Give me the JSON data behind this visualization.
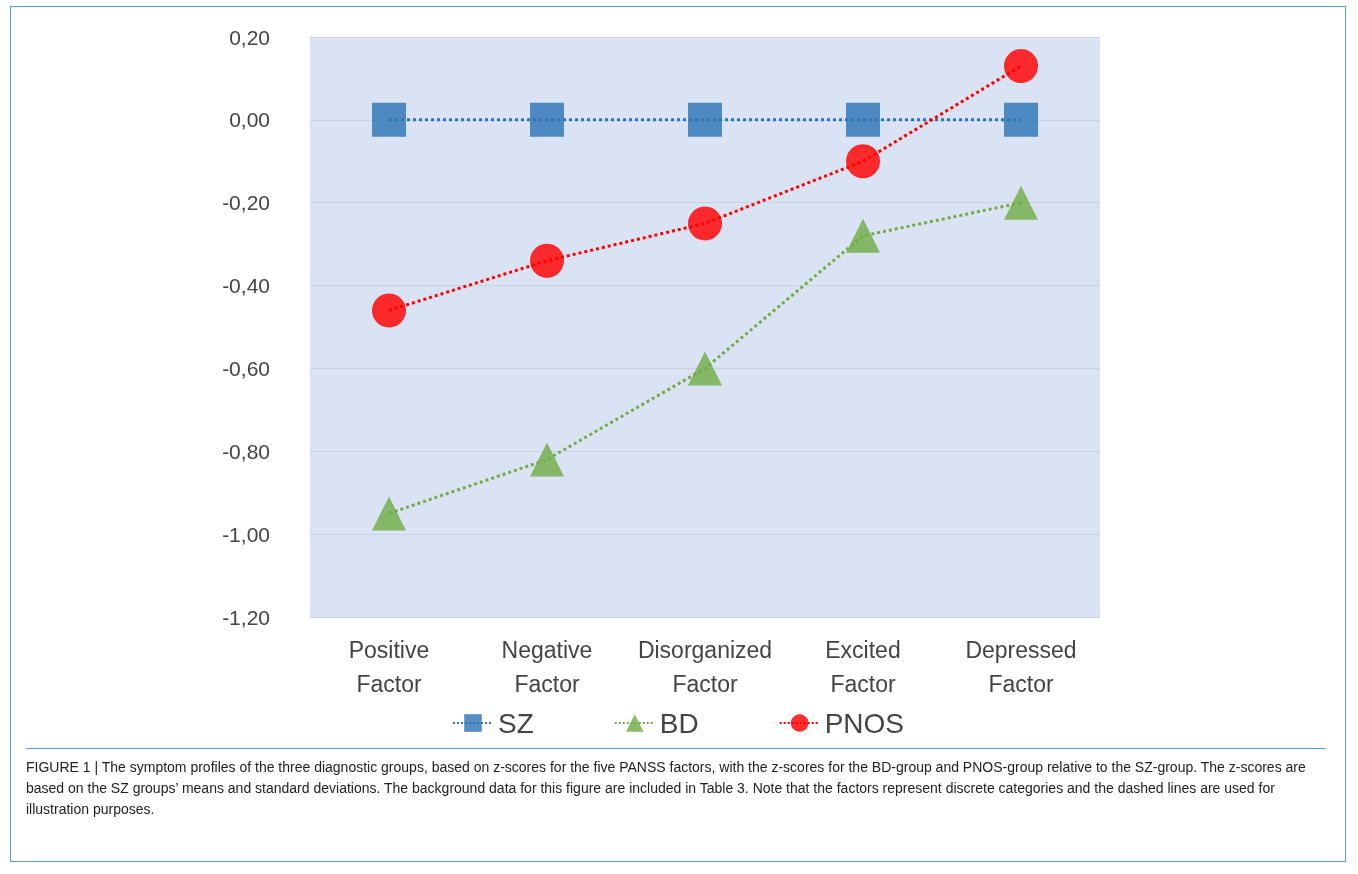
{
  "chart_data": {
    "type": "line",
    "categories": [
      "Positive\nFactor",
      "Negative\nFactor",
      "Disorganized\nFactor",
      "Excited\nFactor",
      "Depressed\nFactor"
    ],
    "series": [
      {
        "name": "SZ",
        "color": "#2e75b6",
        "marker": "square",
        "values": [
          0,
          0,
          0,
          0,
          0
        ]
      },
      {
        "name": "BD",
        "color": "#70ad47",
        "marker": "triangle",
        "values": [
          -0.95,
          -0.82,
          -0.6,
          -0.28,
          -0.2
        ]
      },
      {
        "name": "PNOS",
        "color": "#ff0000",
        "marker": "circle",
        "values": [
          -0.46,
          -0.34,
          -0.25,
          -0.1,
          0.13
        ]
      }
    ],
    "ylim": [
      -1.2,
      0.2
    ],
    "yticks": [
      {
        "value": -1.2,
        "label": "-1,20"
      },
      {
        "value": -1,
        "label": "-1,00"
      },
      {
        "value": -0.8,
        "label": "-0,80"
      },
      {
        "value": -0.6,
        "label": "-0,60"
      },
      {
        "value": -0.4,
        "label": "-0,40"
      },
      {
        "value": -0.2,
        "label": "-0,20"
      },
      {
        "value": 0,
        "label": "0,00"
      },
      {
        "value": 0.2,
        "label": "0,20"
      }
    ],
    "grid": "y",
    "legend": "bottom",
    "line_style": "dotted",
    "annotations": [
      "FIGURE 1 | The symptom profiles of the three diagnostic groups, based on z-scores for the five PANSS factors, with the z-scores for the BD-group and PNOS-group relative to the SZ-group. The z-scores are based on the SZ groups’ means and standard deviations. The background data for this figure are included in Table 3. Note that the factors represent discrete categories and the dashed lines are used for illustration purposes."
    ]
  }
}
